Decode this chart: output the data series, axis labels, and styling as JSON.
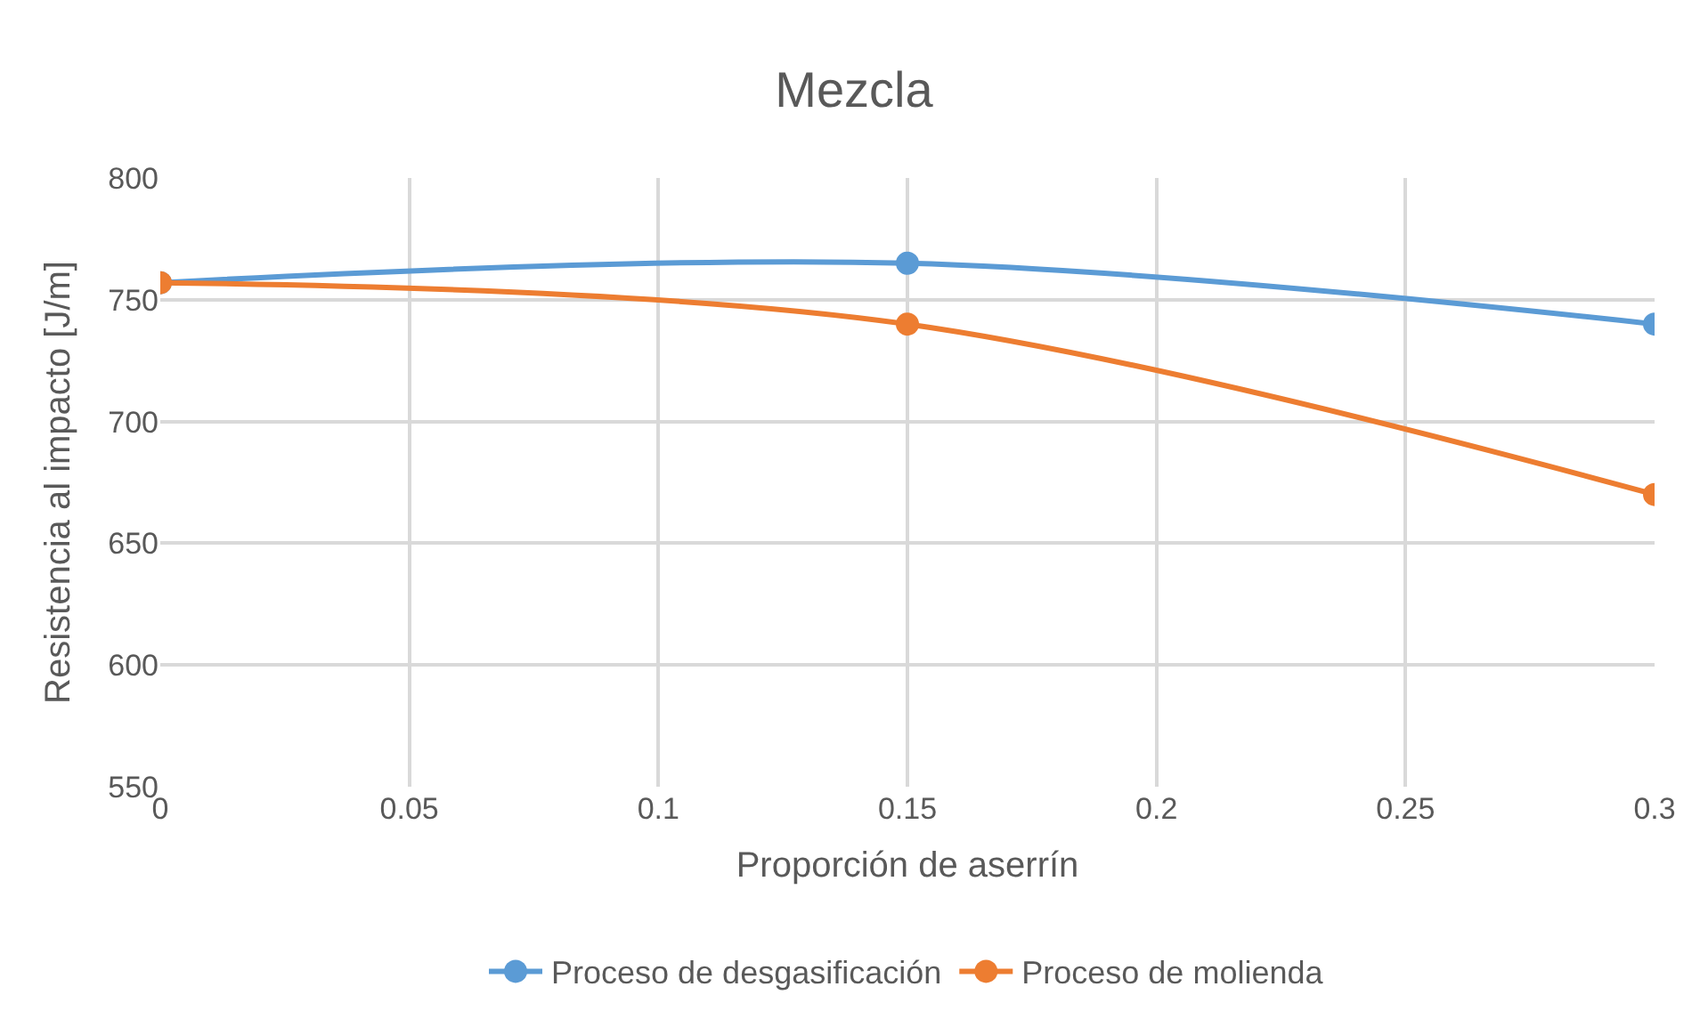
{
  "chart_data": {
    "type": "line",
    "title": "Mezcla",
    "xlabel": "Proporción de aserrín",
    "ylabel": "Resistencia al impacto [J/m]",
    "x": [
      0,
      0.15,
      0.3
    ],
    "series": [
      {
        "name": "Proceso de desgasificación",
        "color": "#5b9bd5",
        "values": [
          757,
          765,
          740
        ]
      },
      {
        "name": "Proceso de molienda",
        "color": "#ed7d31",
        "values": [
          757,
          740,
          670
        ]
      }
    ],
    "xlim": [
      0,
      0.3
    ],
    "xticks": [
      0,
      0.05,
      0.1,
      0.15,
      0.2,
      0.25,
      0.3
    ],
    "ylim": [
      550,
      800
    ],
    "yticks": [
      550,
      600,
      650,
      700,
      750,
      800
    ],
    "grid": true,
    "legend": "bottom",
    "marker": "circle",
    "line_style": "solid"
  }
}
